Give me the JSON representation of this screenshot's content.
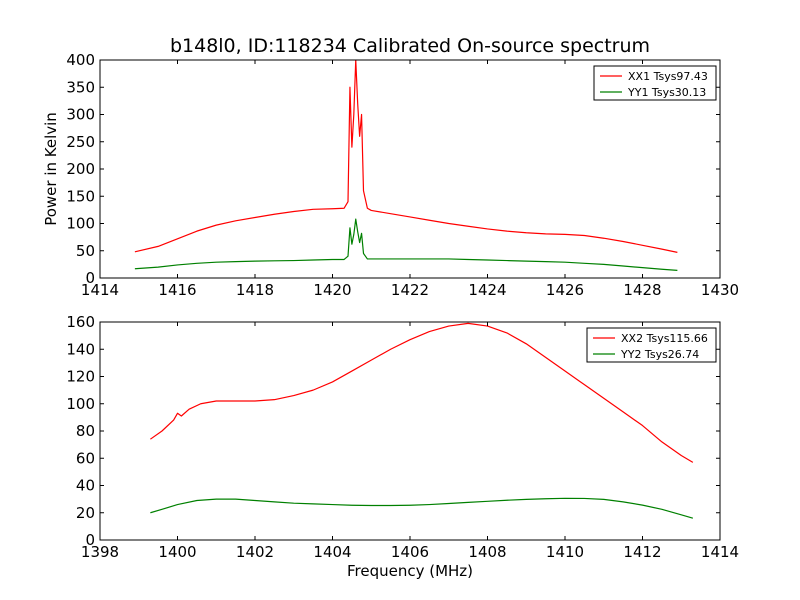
{
  "chart_data": [
    {
      "type": "line",
      "title": "b148l0, ID:118234 Calibrated On-source spectrum",
      "xlabel": "",
      "ylabel": "Power in Kelvin",
      "xlim": [
        1414,
        1430
      ],
      "ylim": [
        0,
        400
      ],
      "xticks": [
        1414,
        1416,
        1418,
        1420,
        1422,
        1424,
        1426,
        1428,
        1430
      ],
      "yticks": [
        0,
        50,
        100,
        150,
        200,
        250,
        300,
        350,
        400
      ],
      "legend_position": "top-right",
      "series": [
        {
          "name": "XX1 Tsys97.43",
          "color": "#ff0000",
          "x": [
            1414.9,
            1415.5,
            1416.0,
            1416.5,
            1417.0,
            1417.5,
            1418.0,
            1418.5,
            1419.0,
            1419.5,
            1420.0,
            1420.3,
            1420.4,
            1420.45,
            1420.5,
            1420.55,
            1420.6,
            1420.65,
            1420.7,
            1420.75,
            1420.8,
            1420.9,
            1421.0,
            1421.5,
            1422.0,
            1422.5,
            1423.0,
            1423.5,
            1424.0,
            1424.5,
            1425.0,
            1425.5,
            1426.0,
            1426.5,
            1427.0,
            1427.5,
            1428.0,
            1428.5,
            1428.9
          ],
          "y": [
            48,
            58,
            72,
            86,
            97,
            105,
            111,
            117,
            122,
            126,
            127,
            128,
            140,
            350,
            240,
            300,
            400,
            320,
            260,
            300,
            160,
            128,
            124,
            118,
            112,
            106,
            100,
            95,
            90,
            86,
            83,
            81,
            80,
            78,
            73,
            67,
            60,
            53,
            47
          ]
        },
        {
          "name": "YY1 Tsys30.13",
          "color": "#008000",
          "x": [
            1414.9,
            1415.5,
            1416.0,
            1416.5,
            1417.0,
            1417.5,
            1418.0,
            1418.5,
            1419.0,
            1419.5,
            1420.0,
            1420.3,
            1420.4,
            1420.45,
            1420.5,
            1420.55,
            1420.6,
            1420.65,
            1420.7,
            1420.75,
            1420.8,
            1420.9,
            1421.0,
            1421.5,
            1422.0,
            1422.5,
            1423.0,
            1423.5,
            1424.0,
            1424.5,
            1425.0,
            1425.5,
            1426.0,
            1426.5,
            1427.0,
            1427.5,
            1428.0,
            1428.5,
            1428.9
          ],
          "y": [
            17,
            20,
            24,
            27,
            29,
            30,
            31,
            31.5,
            32,
            33,
            34,
            34,
            40,
            92,
            62,
            80,
            108,
            85,
            65,
            82,
            45,
            35,
            35,
            35,
            35,
            35,
            35,
            34,
            33,
            32,
            31,
            30,
            29,
            27,
            25,
            22,
            19,
            16,
            14
          ]
        }
      ]
    },
    {
      "type": "line",
      "title": "",
      "xlabel": "Frequency (MHz)",
      "ylabel": "",
      "xlim": [
        1398,
        1414
      ],
      "ylim": [
        0,
        160
      ],
      "xticks": [
        1398,
        1400,
        1402,
        1404,
        1406,
        1408,
        1410,
        1412,
        1414
      ],
      "yticks": [
        0,
        20,
        40,
        60,
        80,
        100,
        120,
        140,
        160
      ],
      "legend_position": "top-right",
      "series": [
        {
          "name": "XX2 Tsys115.66",
          "color": "#ff0000",
          "x": [
            1399.3,
            1399.6,
            1399.9,
            1400.0,
            1400.1,
            1400.3,
            1400.6,
            1401.0,
            1401.5,
            1402.0,
            1402.5,
            1403.0,
            1403.5,
            1404.0,
            1404.5,
            1405.0,
            1405.5,
            1406.0,
            1406.5,
            1407.0,
            1407.5,
            1408.0,
            1408.5,
            1409.0,
            1409.5,
            1410.0,
            1410.5,
            1411.0,
            1411.5,
            1412.0,
            1412.5,
            1413.0,
            1413.3
          ],
          "y": [
            74,
            80,
            88,
            93,
            91,
            96,
            100,
            102,
            102,
            102,
            103,
            106,
            110,
            116,
            124,
            132,
            140,
            147,
            153,
            157,
            159,
            157,
            152,
            144,
            134,
            124,
            114,
            104,
            94,
            84,
            72,
            62,
            57
          ]
        },
        {
          "name": "YY2 Tsys26.74",
          "color": "#008000",
          "x": [
            1399.3,
            1399.6,
            1400.0,
            1400.5,
            1401.0,
            1401.5,
            1402.0,
            1402.5,
            1403.0,
            1403.5,
            1404.0,
            1404.5,
            1405.0,
            1405.5,
            1406.0,
            1406.5,
            1407.0,
            1407.5,
            1408.0,
            1408.5,
            1409.0,
            1409.5,
            1410.0,
            1410.5,
            1411.0,
            1411.5,
            1412.0,
            1412.5,
            1413.0,
            1413.3
          ],
          "y": [
            20,
            22.5,
            26,
            29,
            30,
            30,
            29,
            28,
            27,
            26.5,
            26,
            25.5,
            25.3,
            25.3,
            25.5,
            26,
            26.8,
            27.6,
            28.4,
            29.2,
            29.8,
            30.3,
            30.6,
            30.5,
            29.8,
            28,
            25.6,
            22.5,
            18.5,
            16
          ]
        }
      ]
    }
  ]
}
